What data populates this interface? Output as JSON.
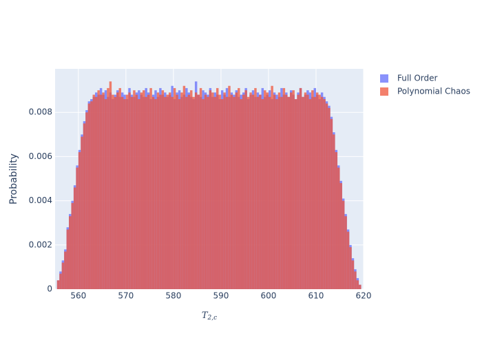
{
  "chart_data": {
    "type": "histogram",
    "x_label": "T",
    "x_label_subscript": "2,c",
    "y_label": "Probability",
    "xlim": [
      555.1,
      620
    ],
    "ylim": [
      0,
      0.00997
    ],
    "xticks": [
      560,
      570,
      580,
      590,
      600,
      610,
      620
    ],
    "yticks": [
      0,
      0.002,
      0.004,
      0.006,
      0.008
    ],
    "grid": true,
    "opacity": 0.75,
    "bins": [
      555.5,
      556,
      556.5,
      557,
      557.5,
      558,
      558.5,
      559,
      559.5,
      560,
      560.5,
      561,
      561.5,
      562,
      562.5,
      563,
      563.5,
      564,
      564.5,
      565,
      565.5,
      566,
      566.5,
      567,
      567.5,
      568,
      568.5,
      569,
      569.5,
      570,
      570.5,
      571,
      571.5,
      572,
      572.5,
      573,
      573.5,
      574,
      574.5,
      575,
      575.5,
      576,
      576.5,
      577,
      577.5,
      578,
      578.5,
      579,
      579.5,
      580,
      580.5,
      581,
      581.5,
      582,
      582.5,
      583,
      583.5,
      584,
      584.5,
      585,
      585.5,
      586,
      586.5,
      587,
      587.5,
      588,
      588.5,
      589,
      589.5,
      590,
      590.5,
      591,
      591.5,
      592,
      592.5,
      593,
      593.5,
      594,
      594.5,
      595,
      595.5,
      596,
      596.5,
      597,
      597.5,
      598,
      598.5,
      599,
      599.5,
      600,
      600.5,
      601,
      601.5,
      602,
      602.5,
      603,
      603.5,
      604,
      604.5,
      605,
      605.5,
      606,
      606.5,
      607,
      607.5,
      608,
      608.5,
      609,
      609.5,
      610,
      610.5,
      611,
      611.5,
      612,
      612.5,
      613,
      613.5,
      614,
      614.5,
      615,
      615.5,
      616,
      616.5,
      617,
      617.5,
      618,
      618.5,
      619,
      619.5
    ],
    "series": [
      {
        "name": "Full Order",
        "color": "#636efa",
        "values": [
          0.0004,
          0.0008,
          0.0013,
          0.0018,
          0.0028,
          0.0034,
          0.004,
          0.0047,
          0.0056,
          0.0063,
          0.007,
          0.0076,
          0.0081,
          0.0085,
          0.0086,
          0.0087,
          0.0089,
          0.0088,
          0.0091,
          0.0088,
          0.009,
          0.0087,
          0.0089,
          0.0086,
          0.0088,
          0.009,
          0.0087,
          0.0089,
          0.0088,
          0.0086,
          0.0091,
          0.0088,
          0.0087,
          0.0089,
          0.009,
          0.0088,
          0.0087,
          0.0091,
          0.0089,
          0.0086,
          0.0088,
          0.009,
          0.0087,
          0.0091,
          0.0088,
          0.0089,
          0.0087,
          0.0088,
          0.0092,
          0.0086,
          0.0089,
          0.009,
          0.0087,
          0.0088,
          0.0091,
          0.0089,
          0.0087,
          0.0086,
          0.0094,
          0.0088,
          0.0087,
          0.009,
          0.0089,
          0.0088,
          0.0091,
          0.0087,
          0.0089,
          0.0088,
          0.0086,
          0.009,
          0.0088,
          0.0091,
          0.0087,
          0.0089,
          0.0088,
          0.009,
          0.0087,
          0.0088,
          0.0089,
          0.0091,
          0.0086,
          0.0088,
          0.009,
          0.0087,
          0.0089,
          0.0088,
          0.0091,
          0.0087,
          0.0088,
          0.009,
          0.0086,
          0.0089,
          0.0088,
          0.0087,
          0.0091,
          0.0088,
          0.0089,
          0.0087,
          0.009,
          0.0088,
          0.0086,
          0.0089,
          0.0091,
          0.0087,
          0.0088,
          0.009,
          0.0089,
          0.0087,
          0.0091,
          0.0088,
          0.0086,
          0.0089,
          0.0087,
          0.0085,
          0.0083,
          0.0078,
          0.0071,
          0.0063,
          0.0056,
          0.0049,
          0.0041,
          0.0034,
          0.0027,
          0.002,
          0.0014,
          0.0009,
          0.0005,
          0.0002
        ]
      },
      {
        "name": "Polynomial Chaos",
        "color": "#ef553b",
        "values": [
          0.0004,
          0.0007,
          0.0012,
          0.0017,
          0.0027,
          0.0033,
          0.0039,
          0.0046,
          0.0055,
          0.0062,
          0.0069,
          0.0075,
          0.008,
          0.0084,
          0.0085,
          0.0088,
          0.0087,
          0.009,
          0.0088,
          0.0089,
          0.0086,
          0.0091,
          0.0094,
          0.0088,
          0.0087,
          0.0089,
          0.0091,
          0.0087,
          0.0086,
          0.0088,
          0.0089,
          0.0087,
          0.009,
          0.0088,
          0.0086,
          0.0089,
          0.009,
          0.0087,
          0.0088,
          0.0091,
          0.0087,
          0.0086,
          0.0089,
          0.0088,
          0.009,
          0.0087,
          0.0088,
          0.0089,
          0.0087,
          0.0091,
          0.0088,
          0.0086,
          0.0089,
          0.0092,
          0.0087,
          0.0088,
          0.009,
          0.0087,
          0.0089,
          0.0088,
          0.0091,
          0.0086,
          0.0088,
          0.0087,
          0.009,
          0.0089,
          0.0087,
          0.0091,
          0.0088,
          0.0086,
          0.0089,
          0.0087,
          0.0092,
          0.0088,
          0.0087,
          0.0089,
          0.0091,
          0.0086,
          0.0088,
          0.009,
          0.0087,
          0.0089,
          0.0088,
          0.0091,
          0.0087,
          0.0088,
          0.0086,
          0.009,
          0.0089,
          0.0087,
          0.0092,
          0.0088,
          0.0086,
          0.0089,
          0.0087,
          0.0091,
          0.0088,
          0.0087,
          0.0089,
          0.009,
          0.0086,
          0.0088,
          0.0091,
          0.0087,
          0.0089,
          0.0088,
          0.0086,
          0.009,
          0.0087,
          0.0089,
          0.0088,
          0.0087,
          0.0086,
          0.0084,
          0.0082,
          0.0077,
          0.007,
          0.0062,
          0.0055,
          0.0048,
          0.004,
          0.0033,
          0.0026,
          0.0019,
          0.0013,
          0.0008,
          0.0004,
          0.0002
        ]
      }
    ]
  }
}
